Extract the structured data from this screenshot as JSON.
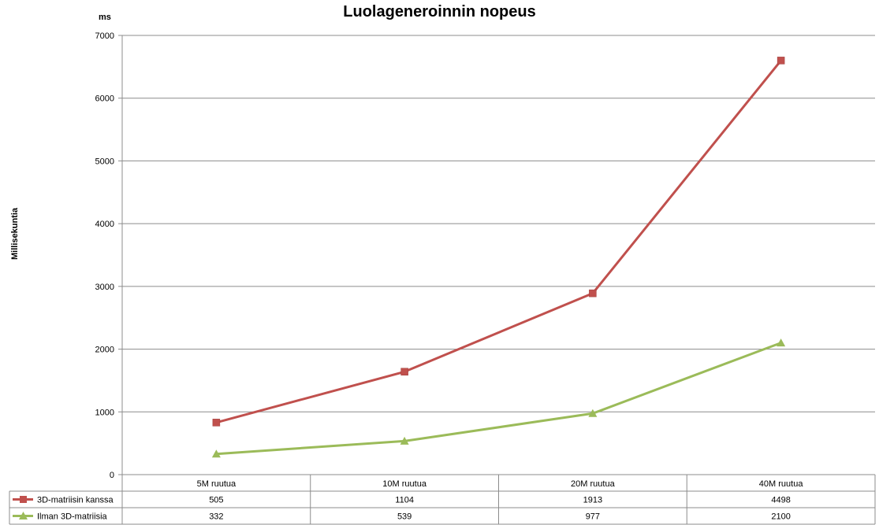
{
  "chart_data": {
    "type": "line",
    "title": "Luolageneroinnin nopeus",
    "ylabel": "Millisekuntia",
    "yunit": "ms",
    "ylim": [
      0,
      7000
    ],
    "yticks": [
      0,
      1000,
      2000,
      3000,
      4000,
      5000,
      6000,
      7000
    ],
    "categories": [
      "5M ruutua",
      "10M ruutua",
      "20M ruutua",
      "40M ruutua"
    ],
    "grid": true,
    "series": [
      {
        "name": "3D-matriisin kanssa",
        "color": "#c0504d",
        "marker": "square",
        "values": [
          830,
          1640,
          2890,
          6600
        ],
        "table_values": [
          "505",
          "1104",
          "1913",
          "4498"
        ]
      },
      {
        "name": "Ilman 3D-matriisia",
        "color": "#9bbb59",
        "marker": "triangle",
        "values": [
          330,
          535,
          975,
          2100
        ],
        "table_values": [
          "332",
          "539",
          "977",
          "2100"
        ]
      }
    ]
  }
}
